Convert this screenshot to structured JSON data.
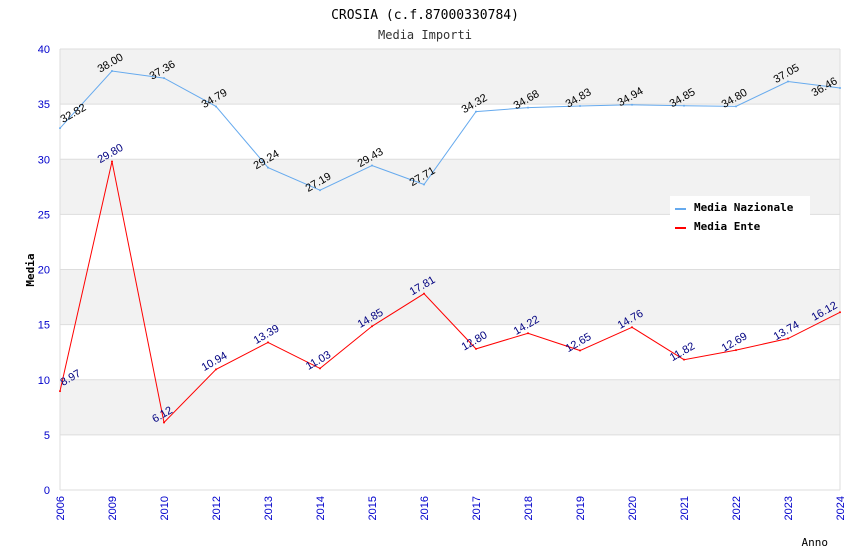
{
  "chart_data": {
    "type": "line",
    "title": "CROSIA (c.f.87000330784)",
    "subtitle": "Media Importi",
    "xlabel": "Anno",
    "ylabel": "Media",
    "ylim": [
      0,
      40
    ],
    "yticks": [
      0,
      5,
      10,
      15,
      20,
      25,
      30,
      35,
      40
    ],
    "categories": [
      "2006",
      "2009",
      "2010",
      "2012",
      "2013",
      "2014",
      "2015",
      "2016",
      "2017",
      "2018",
      "2019",
      "2020",
      "2021",
      "2022",
      "2023",
      "2024"
    ],
    "legend_position": "top-right",
    "series": [
      {
        "name": "Media Nazionale",
        "color": "#66aaee",
        "label_color": "#000000",
        "values": [
          32.82,
          38.0,
          37.36,
          34.79,
          29.24,
          27.19,
          29.43,
          27.71,
          34.32,
          34.68,
          34.83,
          34.94,
          34.85,
          34.8,
          37.05,
          36.46
        ],
        "labels": [
          "32.82",
          "38.00",
          "37.36",
          "34.79",
          "29.24",
          "27.19",
          "29.43",
          "27.71",
          "34.32",
          "34.68",
          "34.83",
          "34.94",
          "34.85",
          "34.80",
          "37.05",
          "36.46"
        ]
      },
      {
        "name": "Media Ente",
        "color": "#ff0000",
        "label_color": "#000080",
        "values": [
          8.97,
          29.8,
          6.12,
          10.94,
          13.39,
          11.03,
          14.85,
          17.81,
          12.8,
          14.22,
          12.65,
          14.76,
          11.82,
          12.69,
          13.74,
          16.12
        ],
        "labels": [
          "8.97",
          "29.80",
          "6.12",
          "10.94",
          "13.39",
          "11.03",
          "14.85",
          "17.81",
          "12.80",
          "14.22",
          "12.65",
          "14.76",
          "11.82",
          "12.69",
          "13.74",
          "16.12"
        ]
      }
    ]
  }
}
